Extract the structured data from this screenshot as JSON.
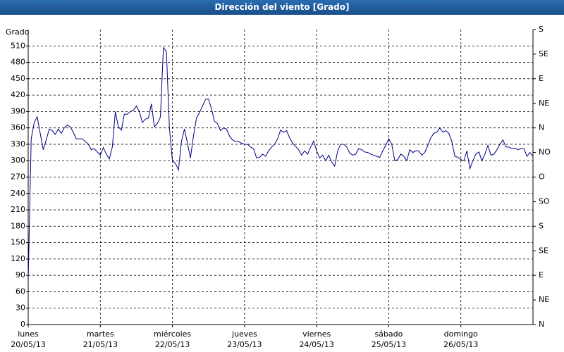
{
  "chart_data": {
    "type": "line",
    "title": "Dirección del viento [Grado]",
    "ylabel": "Grado",
    "color": "#000080",
    "grid": true,
    "xlim": [
      0,
      168
    ],
    "xticks": [
      {
        "value": 0,
        "label": "lunes\n20/05/13"
      },
      {
        "value": 24,
        "label": "martes\n21/05/13"
      },
      {
        "value": 48,
        "label": "miércoles\n22/05/13"
      },
      {
        "value": 72,
        "label": "jueves\n23/05/13"
      },
      {
        "value": 96,
        "label": "viernes\n24/05/13"
      },
      {
        "value": 120,
        "label": "sábado\n25/05/13"
      },
      {
        "value": 144,
        "label": "domingo\n26/05/13"
      }
    ],
    "ylim": [
      0,
      540
    ],
    "yticks": [
      0,
      30,
      60,
      90,
      120,
      150,
      180,
      210,
      240,
      270,
      300,
      330,
      360,
      390,
      420,
      450,
      480,
      510
    ],
    "y2lim": [
      0,
      540
    ],
    "y2ticks": [
      {
        "value": 0,
        "label": "N"
      },
      {
        "value": 45,
        "label": "NE"
      },
      {
        "value": 90,
        "label": "E"
      },
      {
        "value": 135,
        "label": "SE"
      },
      {
        "value": 180,
        "label": "S"
      },
      {
        "value": 225,
        "label": "SO"
      },
      {
        "value": 270,
        "label": "O"
      },
      {
        "value": 315,
        "label": "NO"
      },
      {
        "value": 360,
        "label": "N"
      },
      {
        "value": 405,
        "label": "NE"
      },
      {
        "value": 450,
        "label": "E"
      },
      {
        "value": 495,
        "label": "SE"
      },
      {
        "value": 540,
        "label": "S"
      }
    ],
    "x": [
      0,
      1,
      2,
      3,
      4,
      5,
      6,
      7,
      8,
      9,
      10,
      11,
      12,
      13,
      14,
      15,
      16,
      17,
      18,
      19,
      20,
      21,
      22,
      23,
      24,
      25,
      26,
      27,
      28,
      29,
      30,
      31,
      32,
      33,
      34,
      35,
      36,
      37,
      38,
      39,
      40,
      41,
      42,
      43,
      44,
      45,
      46,
      47,
      48,
      49,
      50,
      51,
      52,
      53,
      54,
      55,
      56,
      57,
      58,
      59,
      60,
      61,
      62,
      63,
      64,
      65,
      66,
      67,
      68,
      69,
      70,
      71,
      72,
      73,
      74,
      75,
      76,
      77,
      78,
      79,
      80,
      81,
      82,
      83,
      84,
      85,
      86,
      87,
      88,
      89,
      90,
      91,
      92,
      93,
      94,
      95,
      96,
      97,
      98,
      99,
      100,
      101,
      102,
      103,
      104,
      105,
      106,
      107,
      108,
      109,
      110,
      111,
      112,
      113,
      114,
      115,
      116,
      117,
      118,
      119,
      120,
      121,
      122,
      123,
      124,
      125,
      126,
      127,
      128,
      129,
      130,
      131,
      132,
      133,
      134,
      135,
      136,
      137,
      138,
      139,
      140,
      141,
      142,
      143,
      144,
      145,
      146,
      147,
      148,
      149,
      150,
      151,
      152,
      153,
      154,
      155,
      156,
      157,
      158,
      159,
      160,
      161,
      162,
      163,
      164,
      165,
      166,
      167,
      168
    ],
    "values": [
      80,
      340,
      370,
      380,
      350,
      320,
      338,
      358,
      355,
      348,
      358,
      350,
      360,
      365,
      362,
      352,
      340,
      340,
      340,
      335,
      330,
      320,
      322,
      316,
      310,
      324,
      312,
      303,
      325,
      390,
      362,
      356,
      385,
      385,
      390,
      392,
      400,
      390,
      370,
      376,
      378,
      404,
      362,
      368,
      380,
      507,
      500,
      360,
      300,
      295,
      283,
      335,
      358,
      332,
      305,
      345,
      378,
      388,
      400,
      412,
      413,
      395,
      372,
      368,
      355,
      360,
      358,
      345,
      338,
      335,
      335,
      332,
      330,
      330,
      325,
      322,
      305,
      306,
      312,
      308,
      318,
      325,
      330,
      340,
      356,
      352,
      355,
      342,
      332,
      326,
      320,
      310,
      318,
      312,
      325,
      336,
      318,
      305,
      310,
      300,
      310,
      298,
      290,
      318,
      330,
      330,
      325,
      314,
      310,
      312,
      322,
      320,
      316,
      315,
      312,
      310,
      308,
      306,
      318,
      328,
      340,
      330,
      300,
      302,
      312,
      308,
      300,
      320,
      315,
      318,
      318,
      310,
      315,
      328,
      342,
      350,
      352,
      360,
      352,
      355,
      350,
      335,
      308,
      306,
      302,
      300,
      318,
      285,
      300,
      312,
      316,
      300,
      312,
      328,
      310,
      312,
      320,
      330,
      338,
      325,
      325,
      322,
      323,
      320,
      322,
      322,
      308,
      315,
      308
    ]
  }
}
